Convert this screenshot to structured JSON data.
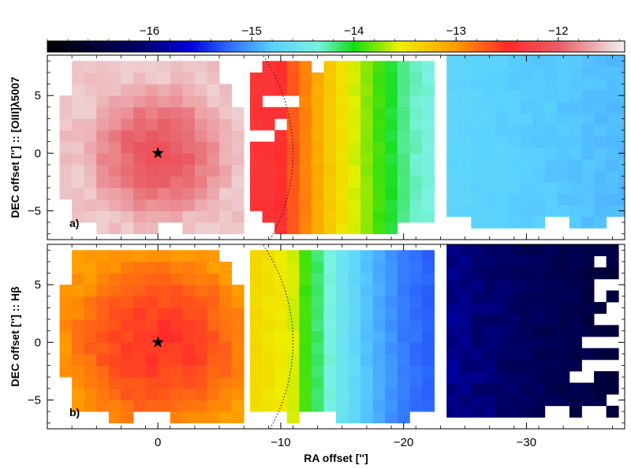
{
  "chart_data": {
    "type": "heatmap",
    "colorbar": {
      "ticks": [
        -16,
        -15,
        -14,
        -13,
        -12
      ],
      "tick_labels": [
        "−16",
        "−15",
        "−14",
        "−13",
        "−12"
      ],
      "range": [
        -17.0,
        -11.35
      ],
      "colormap_stops": [
        {
          "v": -17.0,
          "c": "#000000"
        },
        {
          "v": -16.1,
          "c": "#000066"
        },
        {
          "v": -15.6,
          "c": "#0000dd"
        },
        {
          "v": -15.2,
          "c": "#3070ff"
        },
        {
          "v": -14.8,
          "c": "#5ad0ff"
        },
        {
          "v": -14.35,
          "c": "#7af2e0"
        },
        {
          "v": -14.0,
          "c": "#11dd11"
        },
        {
          "v": -13.55,
          "c": "#eef000"
        },
        {
          "v": -13.0,
          "c": "#ff9a00"
        },
        {
          "v": -12.5,
          "c": "#ff2b2b"
        },
        {
          "v": -12.0,
          "c": "#e85d66"
        },
        {
          "v": -11.35,
          "c": "#f0f0f0"
        }
      ]
    },
    "x_axis": {
      "label": "RA offset ['']",
      "range": [
        9,
        -38
      ],
      "ticks": [
        0,
        -10,
        -20,
        -30
      ],
      "tick_labels": [
        "0",
        "−10",
        "−20",
        "−30"
      ]
    },
    "panels": [
      {
        "id": "a",
        "label": "a)",
        "ylabel": "DEC offset [''] :: [OIII]λ5007",
        "ylim": [
          -7.5,
          8.5
        ],
        "yticks": [
          5,
          0,
          -5
        ],
        "ytick_labels": [
          "5",
          "0",
          "−5"
        ],
        "star": [
          0,
          0
        ],
        "arc": {
          "x_center": 5,
          "radius": 16
        }
      },
      {
        "id": "b",
        "label": "b)",
        "ylabel": "DEC offset [''] :: Hβ",
        "ylim": [
          -7.5,
          8.5
        ],
        "yticks": [
          5,
          0,
          -5
        ],
        "ytick_labels": [
          "5",
          "0",
          "−5"
        ],
        "star": [
          0,
          0
        ],
        "arc": {
          "x_center": 5,
          "radius": 16
        }
      }
    ],
    "fields": [
      {
        "name": "center",
        "x_range": [
          8,
          -6.5
        ],
        "y_range": [
          -7,
          7.5
        ]
      },
      {
        "name": "middle",
        "x_range": [
          -7.5,
          -22.5
        ],
        "y_range": [
          -7,
          7.5
        ]
      },
      {
        "name": "right",
        "x_range": [
          -23.5,
          -38
        ],
        "y_range": [
          -6.5,
          8
        ]
      }
    ],
    "cell_size_arcsec": 1,
    "value_model": {
      "a": {
        "center": {
          "peak": -12.08,
          "edge": -11.55,
          "floor": -11.45
        },
        "middle_column_values": [
          -12.4,
          -12.4,
          -12.45,
          -12.7,
          -12.9,
          -13.1,
          -13.3,
          -13.45,
          -13.6,
          -13.75,
          -13.9,
          -14.05,
          -14.2,
          -14.3,
          -14.35
        ],
        "right": {
          "base": -14.75,
          "gradient": -0.01
        }
      },
      "b": {
        "center": {
          "peak": -12.55,
          "edge": -13.0
        },
        "middle_column_values": [
          -13.4,
          -13.45,
          -13.5,
          -13.6,
          -13.9,
          -14.15,
          -14.35,
          -14.55,
          -14.7,
          -14.85,
          -14.95,
          -15.05,
          -15.15,
          -15.2,
          -15.25
        ],
        "right": {
          "base": -15.95,
          "gradient": -0.04
        }
      }
    }
  }
}
